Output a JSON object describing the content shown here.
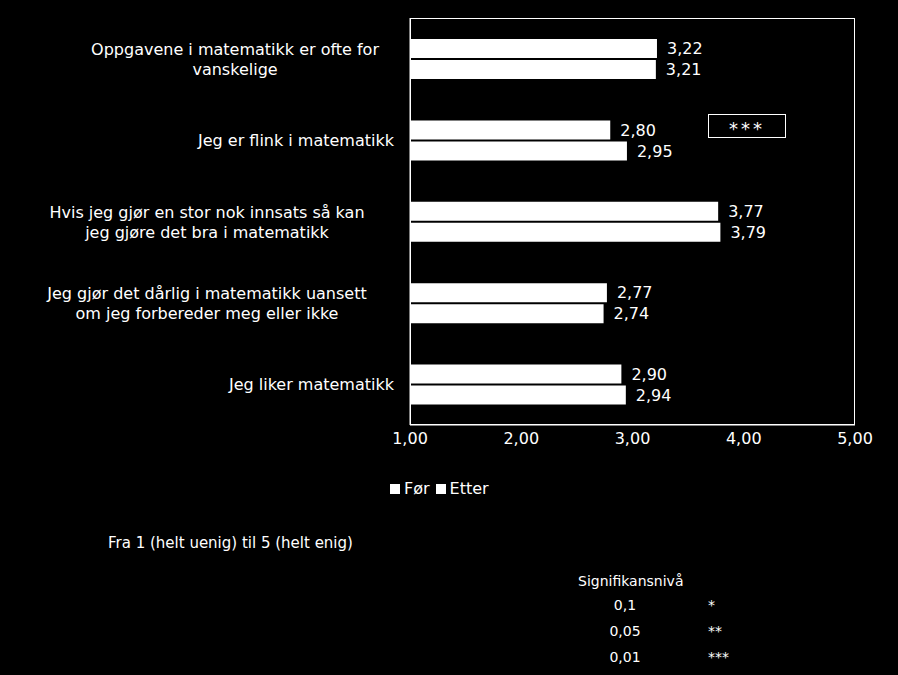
{
  "chart_data": {
    "type": "bar",
    "orientation": "horizontal",
    "categories": [
      "Oppgavene i matematikk er ofte for vanskelige",
      "Jeg er flink i matematikk",
      "Hvis jeg gjør en stor nok innsats så kan jeg gjøre det bra i matematikk",
      "Jeg gjør det dårlig i matematikk uansett om jeg forbereder meg eller ikke",
      "Jeg liker matematikk"
    ],
    "series": [
      {
        "name": "Før",
        "color": "#ffffff",
        "values": [
          3.22,
          2.8,
          3.77,
          2.77,
          2.9
        ],
        "value_labels": [
          "3,22",
          "2,80",
          "3,77",
          "2,77",
          "2,90"
        ]
      },
      {
        "name": "Etter",
        "color": "#ffffff",
        "values": [
          3.21,
          2.95,
          3.79,
          2.74,
          2.94
        ],
        "value_labels": [
          "3,21",
          "2,95",
          "3,79",
          "2,74",
          "2,94"
        ]
      }
    ],
    "xlim": [
      1,
      5
    ],
    "xticks": [
      {
        "value": 1,
        "label": "1,00"
      },
      {
        "value": 2,
        "label": "2,00"
      },
      {
        "value": 3,
        "label": "3,00"
      },
      {
        "value": 4,
        "label": "4,00"
      },
      {
        "value": 5,
        "label": "5,00"
      }
    ],
    "data_labels": true,
    "legend": "bottom",
    "grid": false,
    "annotations": [
      {
        "category": "Jeg er flink i matematikk",
        "text": "***"
      }
    ],
    "note": "Fra 1 (helt uenig) til 5 (helt enig)",
    "significance": {
      "title": "Signifikansnivå",
      "levels": [
        {
          "value": 0.1,
          "label": "0,1",
          "marker": "*"
        },
        {
          "value": 0.05,
          "label": "0,05",
          "marker": "**"
        },
        {
          "value": 0.01,
          "label": "0,01",
          "marker": "***"
        }
      ]
    }
  }
}
